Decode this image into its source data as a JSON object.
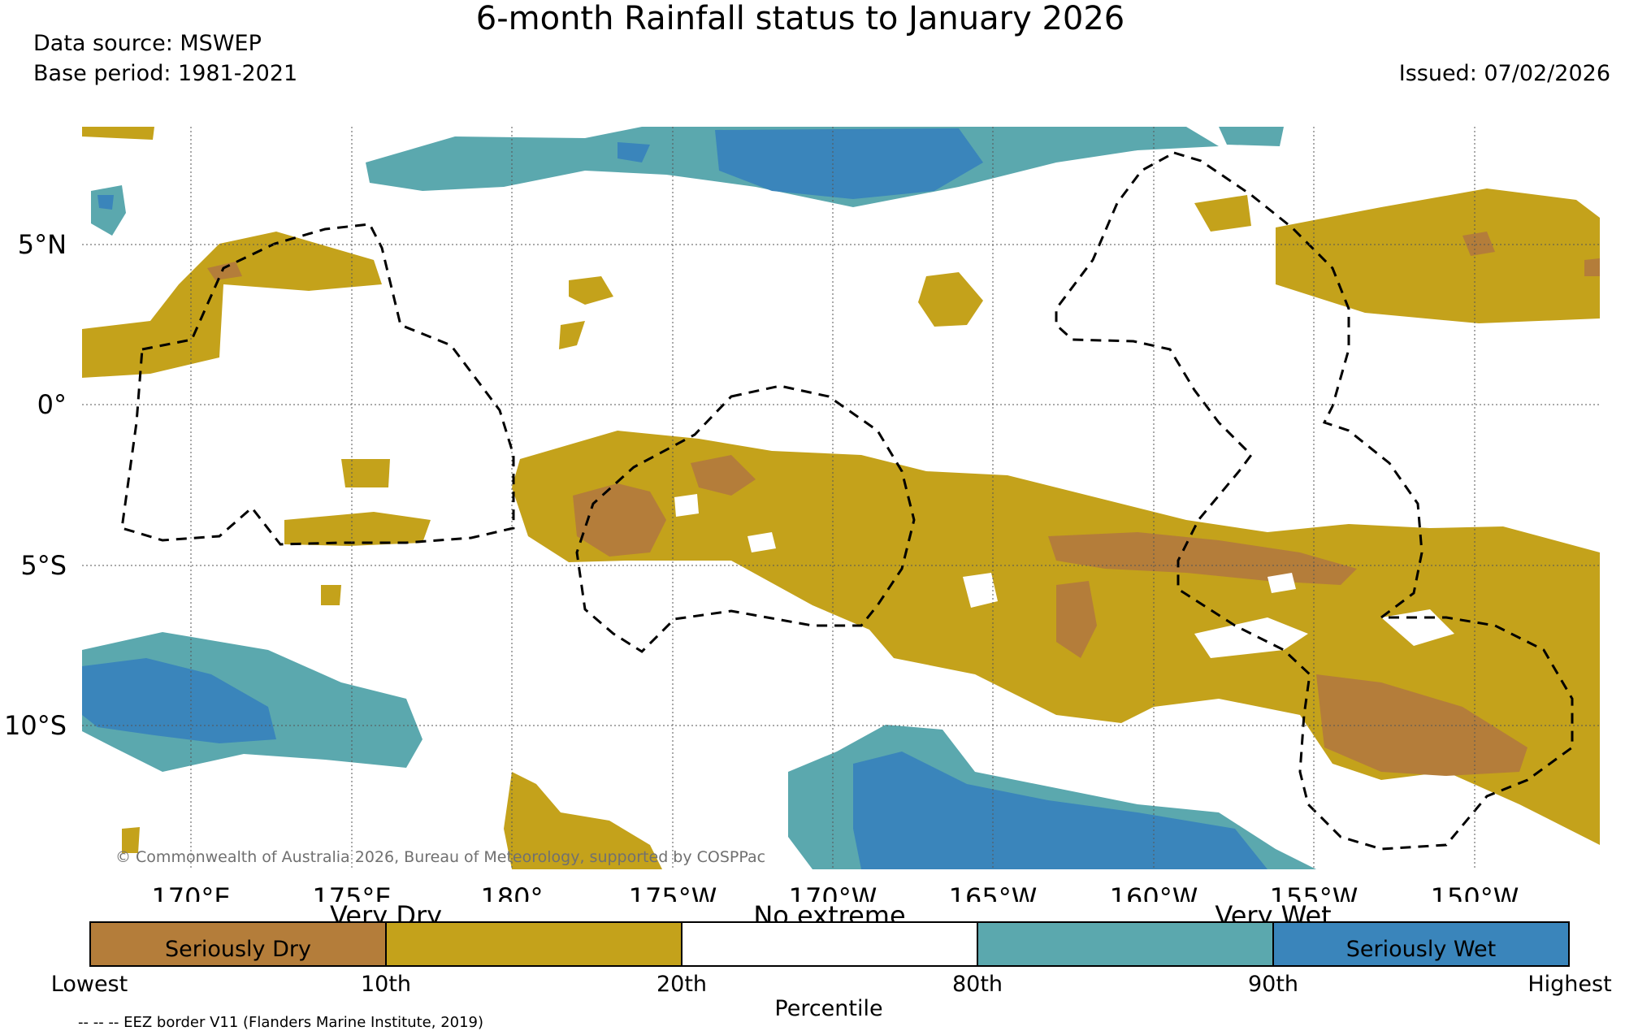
{
  "title": "6-month Rainfall status to January 2026",
  "source": "Data source: MSWEP",
  "base_period": "Base period: 1981-2021",
  "issued": "Issued: 07/02/2026",
  "copyright": "© Commonwealth of Australia 2026, Bureau of Meteorology, supported by COSPPac",
  "lon_labels": [
    "170°E",
    "175°E",
    "180°",
    "175°W",
    "170°W",
    "165°W",
    "160°W",
    "155°W",
    "150°W"
  ],
  "lat_labels": [
    "5°N",
    "0°",
    "5°S",
    "10°S"
  ],
  "legend": {
    "segments": [
      {
        "label": "Seriously Dry",
        "color": "#b47d3a"
      },
      {
        "label": "",
        "color": "#c4a21b"
      },
      {
        "label": "",
        "color": "#ffffff"
      },
      {
        "label": "",
        "color": "#5ba8ae"
      },
      {
        "label": "Seriously Wet",
        "color": "#3a85bb"
      }
    ],
    "groups": [
      "Very Dry",
      "No extreme",
      "Very Wet"
    ],
    "ticks": [
      "Lowest",
      "10th",
      "20th",
      "80th",
      "90th",
      "Highest"
    ],
    "axis_title": "Percentile"
  },
  "eez_note": "-- -- -- EEZ border V11 (Flanders Marine Institute, 2019)",
  "colors": {
    "seriously_dry": "#b47d3a",
    "very_dry": "#c4a21b",
    "very_wet": "#5ba8ae",
    "seriously_wet": "#3a85bb"
  }
}
